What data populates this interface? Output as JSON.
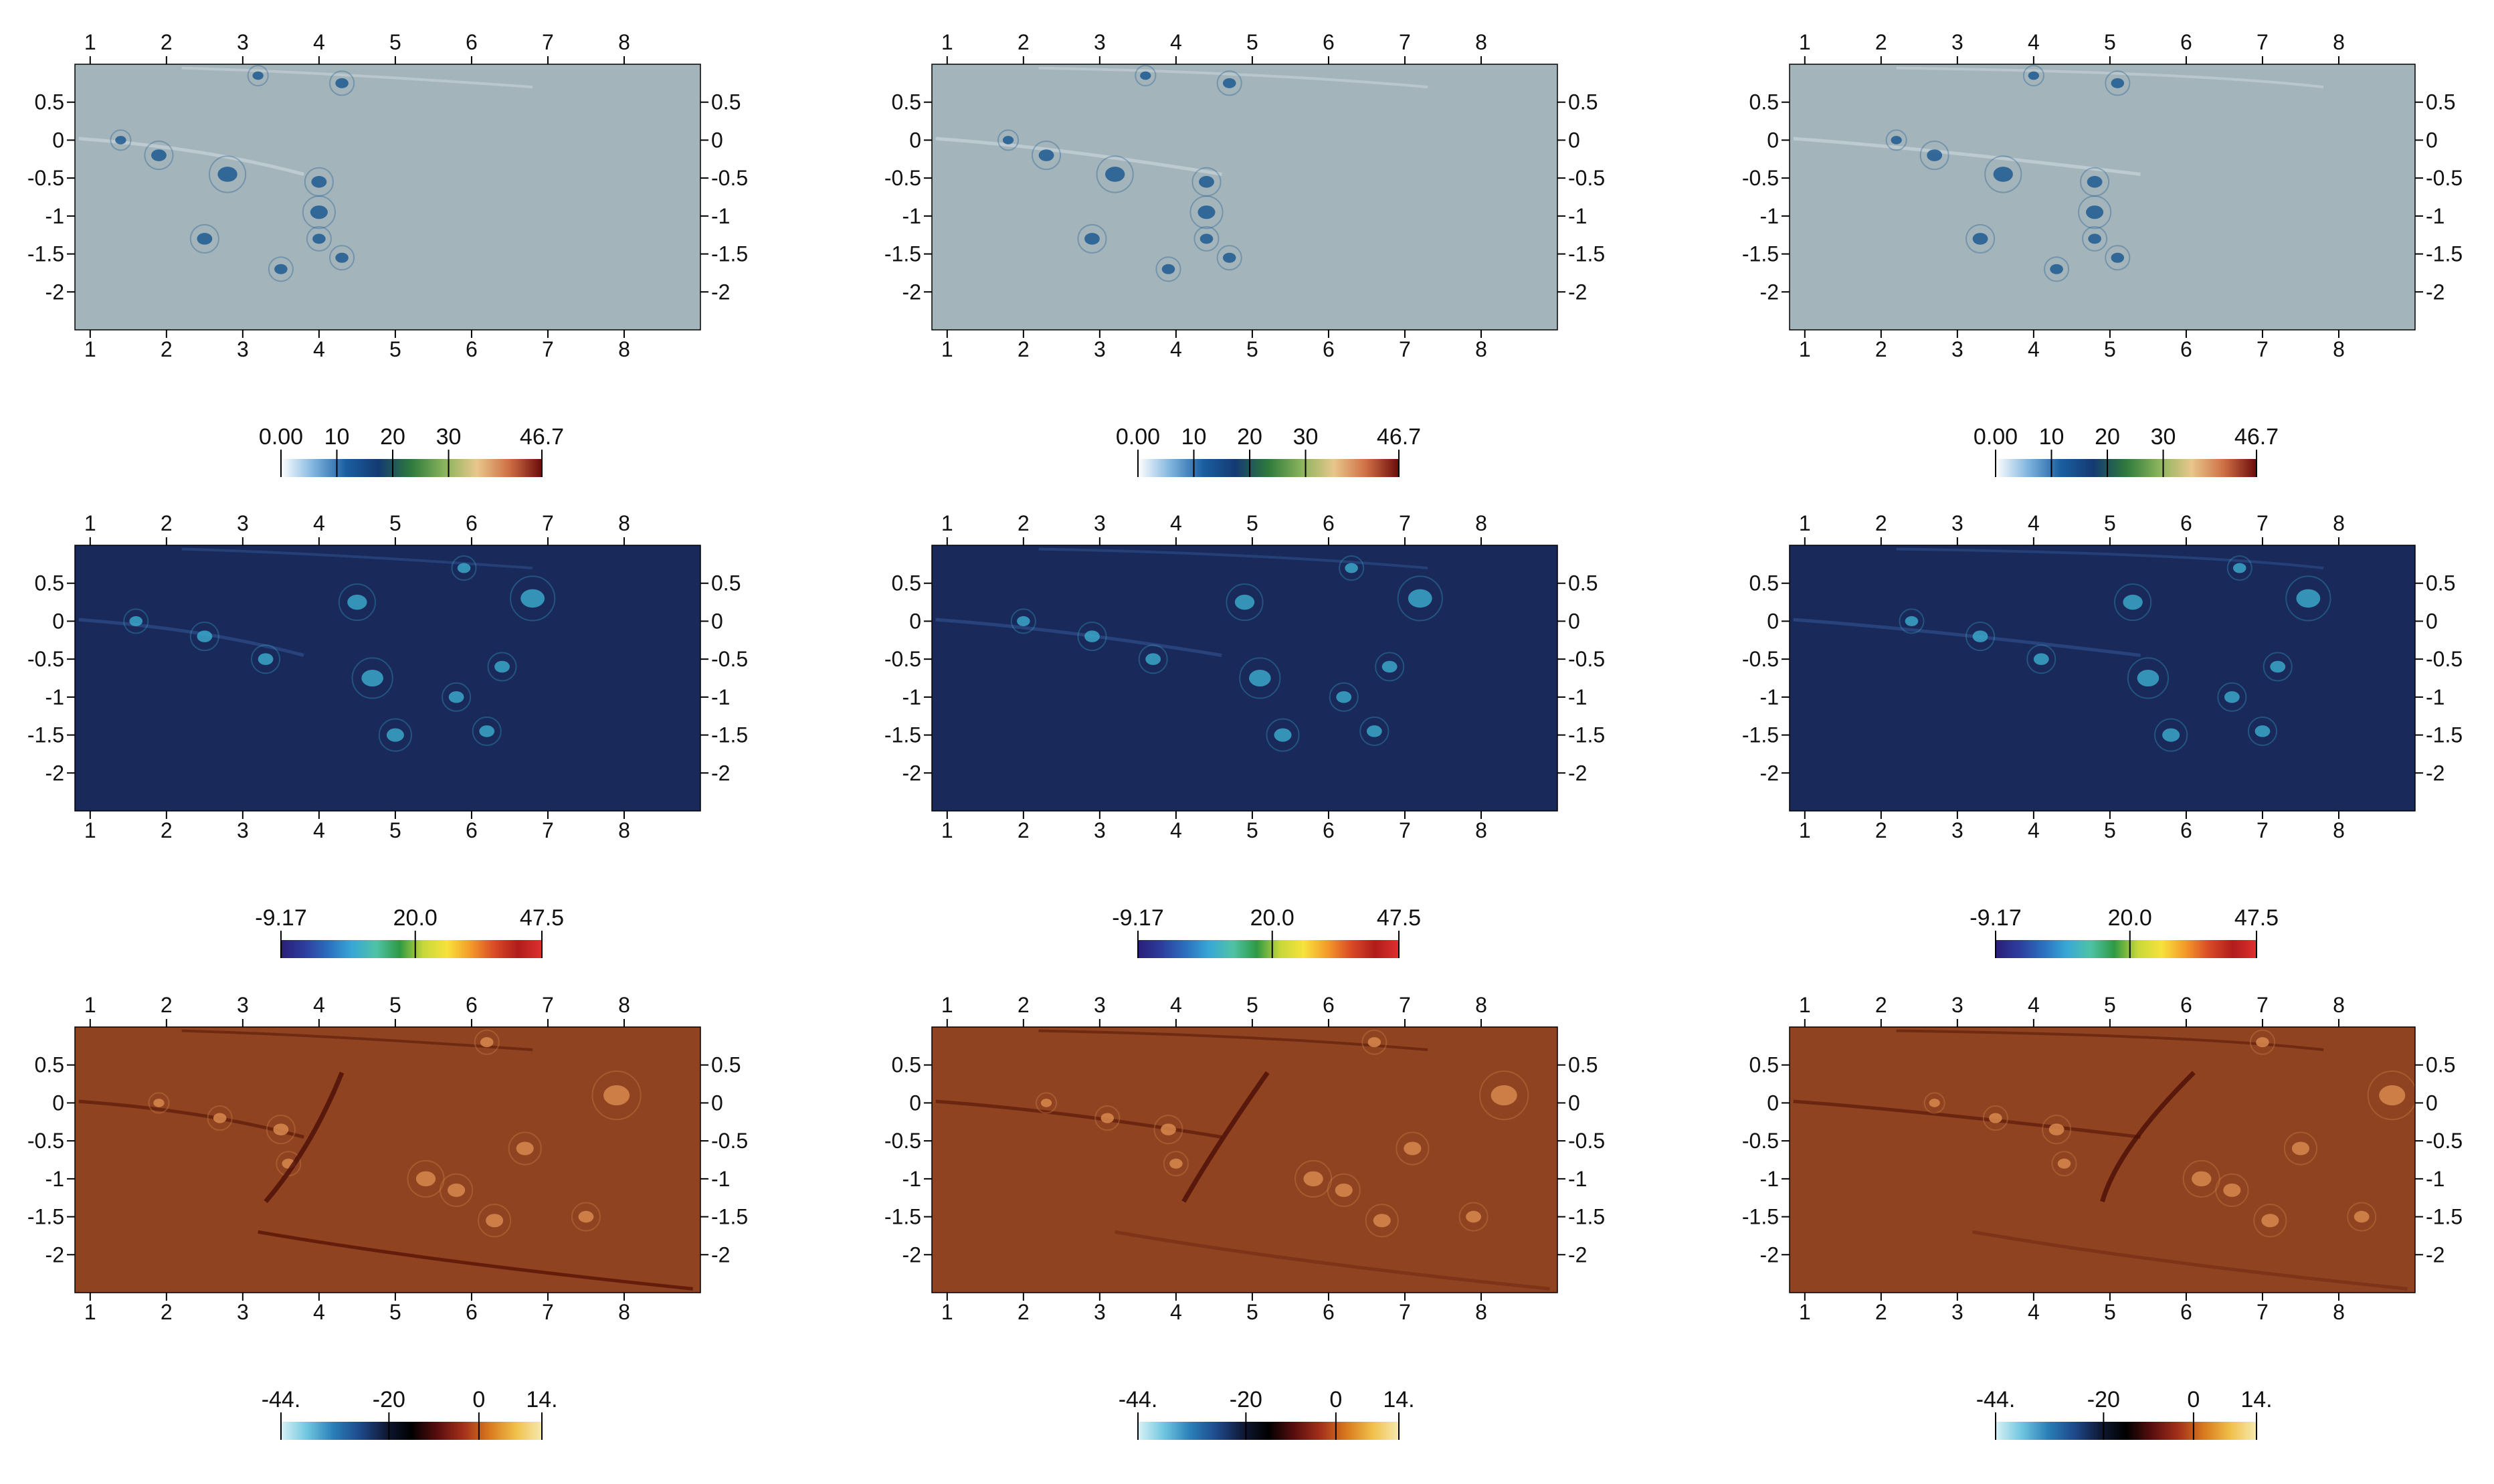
{
  "figure": {
    "rows": [
      {
        "id": "row1",
        "background": "#a3b4ba",
        "colormap": [
          "#ffffff",
          "#7fb4df",
          "#1a5ea0",
          "#143a72",
          "#2f7a3c",
          "#88b35c",
          "#e8c78c",
          "#cf6f45",
          "#6b0b0b"
        ]
      },
      {
        "id": "row2",
        "background": "#18295a",
        "colormap": [
          "#2a1e78",
          "#2c3d9e",
          "#2b6fbf",
          "#38a8d6",
          "#4fc3a6",
          "#2e9a45",
          "#c7d83a",
          "#f7e23c",
          "#f49a2a",
          "#d94a26",
          "#b01c1c",
          "#e03030"
        ]
      },
      {
        "id": "row3",
        "background": "#8f4320",
        "colormap": [
          "#d9f2f6",
          "#6fc6e0",
          "#2a7fb8",
          "#1e4a8c",
          "#101a38",
          "#000000",
          "#5a0e0e",
          "#a4301a",
          "#d97a1e",
          "#f0c04a",
          "#f6e9b0"
        ]
      }
    ]
  },
  "chart_data": [
    {
      "type": "heatmap",
      "row": 1,
      "column": 1,
      "x_ticks": [
        "1",
        "2",
        "3",
        "4",
        "5",
        "6",
        "7",
        "8"
      ],
      "y_ticks": [
        "0.5",
        "0",
        "-0.5",
        "-1",
        "-1.5",
        "-2"
      ],
      "xlim": [
        0.8,
        9.0
      ],
      "ylim": [
        -2.5,
        1.0
      ],
      "colorbar": {
        "ticks": [
          "0.00",
          "10",
          "20",
          "30",
          "46.7"
        ],
        "range": [
          0.0,
          46.7
        ]
      }
    },
    {
      "type": "heatmap",
      "row": 1,
      "column": 2,
      "x_ticks": [
        "1",
        "2",
        "3",
        "4",
        "5",
        "6",
        "7",
        "8"
      ],
      "y_ticks": [
        "0.5",
        "0",
        "-0.5",
        "-1",
        "-1.5",
        "-2"
      ],
      "xlim": [
        0.8,
        9.0
      ],
      "ylim": [
        -2.5,
        1.0
      ],
      "colorbar": {
        "ticks": [
          "0.00",
          "10",
          "20",
          "30",
          "46.7"
        ],
        "range": [
          0.0,
          46.7
        ]
      }
    },
    {
      "type": "heatmap",
      "row": 1,
      "column": 3,
      "x_ticks": [
        "1",
        "2",
        "3",
        "4",
        "5",
        "6",
        "7",
        "8"
      ],
      "y_ticks": [
        "0.5",
        "0",
        "-0.5",
        "-1",
        "-1.5",
        "-2"
      ],
      "xlim": [
        0.8,
        9.0
      ],
      "ylim": [
        -2.5,
        1.0
      ],
      "colorbar": {
        "ticks": [
          "0.00",
          "10",
          "20",
          "30",
          "46.7"
        ],
        "range": [
          0.0,
          46.7
        ]
      }
    },
    {
      "type": "heatmap",
      "row": 2,
      "column": 1,
      "x_ticks": [
        "1",
        "2",
        "3",
        "4",
        "5",
        "6",
        "7",
        "8"
      ],
      "y_ticks": [
        "0.5",
        "0",
        "-0.5",
        "-1",
        "-1.5",
        "-2"
      ],
      "xlim": [
        0.8,
        9.0
      ],
      "ylim": [
        -2.5,
        1.0
      ],
      "colorbar": {
        "ticks": [
          "-9.17",
          "20.0",
          "47.5"
        ],
        "range": [
          -9.17,
          47.5
        ]
      }
    },
    {
      "type": "heatmap",
      "row": 2,
      "column": 2,
      "x_ticks": [
        "1",
        "2",
        "3",
        "4",
        "5",
        "6",
        "7",
        "8"
      ],
      "y_ticks": [
        "0.5",
        "0",
        "-0.5",
        "-1",
        "-1.5",
        "-2"
      ],
      "xlim": [
        0.8,
        9.0
      ],
      "ylim": [
        -2.5,
        1.0
      ],
      "colorbar": {
        "ticks": [
          "-9.17",
          "20.0",
          "47.5"
        ],
        "range": [
          -9.17,
          47.5
        ]
      }
    },
    {
      "type": "heatmap",
      "row": 2,
      "column": 3,
      "x_ticks": [
        "1",
        "2",
        "3",
        "4",
        "5",
        "6",
        "7",
        "8"
      ],
      "y_ticks": [
        "0.5",
        "0",
        "-0.5",
        "-1",
        "-1.5",
        "-2"
      ],
      "xlim": [
        0.8,
        9.0
      ],
      "ylim": [
        -2.5,
        1.0
      ],
      "colorbar": {
        "ticks": [
          "-9.17",
          "20.0",
          "47.5"
        ],
        "range": [
          -9.17,
          47.5
        ]
      }
    },
    {
      "type": "heatmap",
      "row": 3,
      "column": 1,
      "x_ticks": [
        "1",
        "2",
        "3",
        "4",
        "5",
        "6",
        "7",
        "8"
      ],
      "y_ticks": [
        "0.5",
        "0",
        "-0.5",
        "-1",
        "-1.5",
        "-2"
      ],
      "xlim": [
        0.8,
        9.0
      ],
      "ylim": [
        -2.5,
        1.0
      ],
      "colorbar": {
        "ticks": [
          "-44.",
          "-20",
          "0",
          "14."
        ],
        "range": [
          -44.0,
          14.0
        ]
      }
    },
    {
      "type": "heatmap",
      "row": 3,
      "column": 2,
      "x_ticks": [
        "1",
        "2",
        "3",
        "4",
        "5",
        "6",
        "7",
        "8"
      ],
      "y_ticks": [
        "0.5",
        "0",
        "-0.5",
        "-1",
        "-1.5",
        "-2"
      ],
      "xlim": [
        0.8,
        9.0
      ],
      "ylim": [
        -2.5,
        1.0
      ],
      "colorbar": {
        "ticks": [
          "-44.",
          "-20",
          "0",
          "14."
        ],
        "range": [
          -44.0,
          14.0
        ]
      }
    },
    {
      "type": "heatmap",
      "row": 3,
      "column": 3,
      "x_ticks": [
        "1",
        "2",
        "3",
        "4",
        "5",
        "6",
        "7",
        "8"
      ],
      "y_ticks": [
        "0.5",
        "0",
        "-0.5",
        "-1",
        "-1.5",
        "-2"
      ],
      "xlim": [
        0.8,
        9.0
      ],
      "ylim": [
        -2.5,
        1.0
      ],
      "colorbar": {
        "ticks": [
          "-44.",
          "-20",
          "0",
          "14."
        ],
        "range": [
          -44.0,
          14.0
        ]
      }
    }
  ]
}
